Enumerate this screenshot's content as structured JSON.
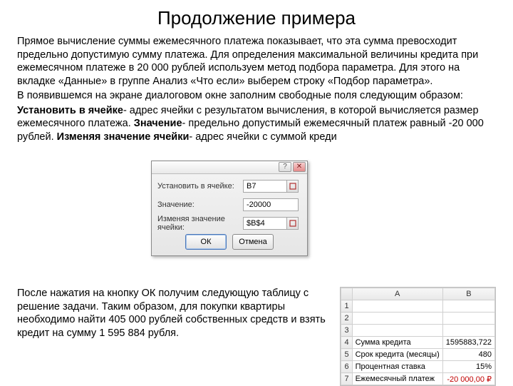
{
  "title": "Продолжение примера",
  "para1": "Прямое вычисление суммы ежемесячного платежа показывает, что эта сумма превосходит предельно допустимую сумму платежа. Для определения максимальной величины кредита при ежемесячном платеже в 20 000 рублей используем метод подбора параметра. Для этого на вкладке «Данные» в группе Анализ «Что если» выберем строку «Подбор параметра».",
  "para2": "В появившемся на экране диалоговом окне заполним свободные поля следующим образом:",
  "para3_lead": "Установить в ячейке",
  "para3_a": "- адрес ячейки с результатом вычисления, в которой вычисляется размер ежемесячного платежа. ",
  "para3_b_lead": "Значение",
  "para3_b": "- предельно допустимый ежемесячный платеж равный -20 000 рублей. ",
  "para3_c_lead": "Изменяя значение ячейки",
  "para3_c": "- адрес ячейки с суммой креди",
  "dialog": {
    "labels": {
      "set_cell": "Установить в ячейке:",
      "value": "Значение:",
      "changing": "Изменяя значение ячейки:"
    },
    "values": {
      "set_cell": "B7",
      "value": "-20000",
      "changing": "$B$4"
    },
    "buttons": {
      "ok": "ОК",
      "cancel": "Отмена"
    }
  },
  "bottom_text": "После нажатия на кнопку ОК получим следующую таблицу с решение задачи. Таким образом, для покупки квартиры необходимо найти 405 000 рублей собственных средств и взять кредит на сумму 1 595 884 рубля.",
  "sheet": {
    "col_headers": [
      "A",
      "B"
    ],
    "rows": [
      {
        "n": "1",
        "a": "",
        "b": ""
      },
      {
        "n": "2",
        "a": "",
        "b": ""
      },
      {
        "n": "3",
        "a": "",
        "b": ""
      },
      {
        "n": "4",
        "a": "Сумма кредита",
        "b": "1595883,722"
      },
      {
        "n": "5",
        "a": "Срок кредита (месяцы)",
        "b": "480"
      },
      {
        "n": "6",
        "a": "Процентная ставка",
        "b": "15%"
      },
      {
        "n": "7",
        "a": "Ежемесячный платеж",
        "b": "-20 000,00 ₽",
        "neg": true
      }
    ]
  }
}
